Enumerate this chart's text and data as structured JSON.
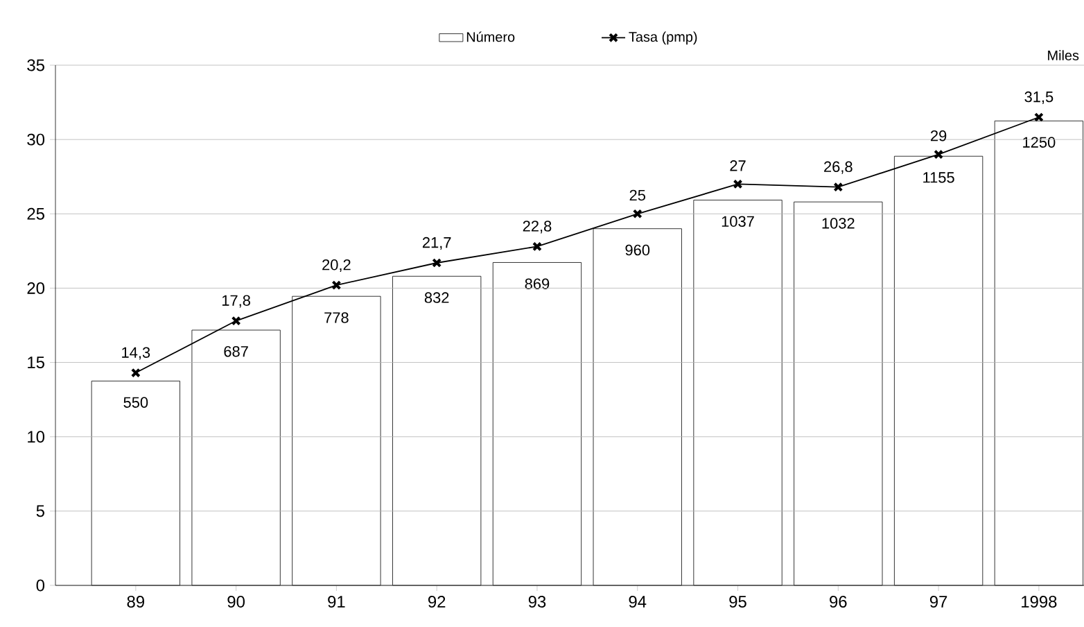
{
  "chart_data": {
    "type": "bar",
    "categories": [
      "89",
      "90",
      "91",
      "92",
      "93",
      "94",
      "95",
      "96",
      "97",
      "1998"
    ],
    "series": [
      {
        "name": "Número",
        "axis": "y2",
        "color": "#ffffff",
        "values": [
          550,
          687,
          778,
          832,
          869,
          960,
          1037,
          1032,
          1155,
          1250
        ],
        "value_labels": [
          "550",
          "687",
          "778",
          "832",
          "869",
          "960",
          "1037",
          "1032",
          "1155",
          "1250"
        ]
      },
      {
        "name": "Tasa (pmp)",
        "type": "line",
        "color": "#000000",
        "values": [
          14.3,
          17.8,
          20.2,
          21.7,
          22.8,
          25,
          27,
          26.8,
          29,
          31.5
        ],
        "value_labels": [
          "14,3",
          "17,8",
          "20,2",
          "21,7",
          "22,8",
          "25",
          "27",
          "26,8",
          "29",
          "31,5"
        ]
      }
    ],
    "ylim": [
      0,
      35
    ],
    "yticks": [
      0,
      5,
      10,
      15,
      20,
      25,
      30,
      35
    ],
    "y2lim": [
      0,
      1400
    ],
    "y2label": "Miles",
    "grid": "y",
    "legend": "top",
    "marker": "cross"
  }
}
